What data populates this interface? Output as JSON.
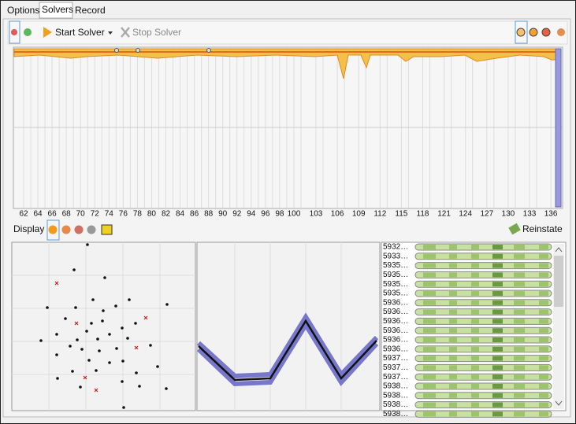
{
  "tabs": [
    "Options",
    "Solvers",
    "Record"
  ],
  "toolbar": {
    "start": "Start Solver",
    "stop": "Stop Solver"
  },
  "timeline_labels": [
    "62",
    "64",
    "66",
    "68",
    "70",
    "72",
    "74",
    "76",
    "78",
    "80",
    "82",
    "84",
    "86",
    "88",
    "90",
    "92",
    "94",
    "96",
    "98",
    "100",
    "103",
    "106",
    "109",
    "112",
    "115",
    "118",
    "121",
    "124",
    "127",
    "130",
    "133",
    "136"
  ],
  "display": {
    "label": "Display",
    "reinstate": "Reinstate"
  },
  "solutions": [
    "5932…",
    "5933…",
    "5935…",
    "5935…",
    "5935…",
    "5935…",
    "5936…",
    "5936…",
    "5936…",
    "5936…",
    "5936…",
    "5936…",
    "5937…",
    "5937…",
    "5937…",
    "5938…",
    "5938…",
    "5938…",
    "5938…"
  ]
}
